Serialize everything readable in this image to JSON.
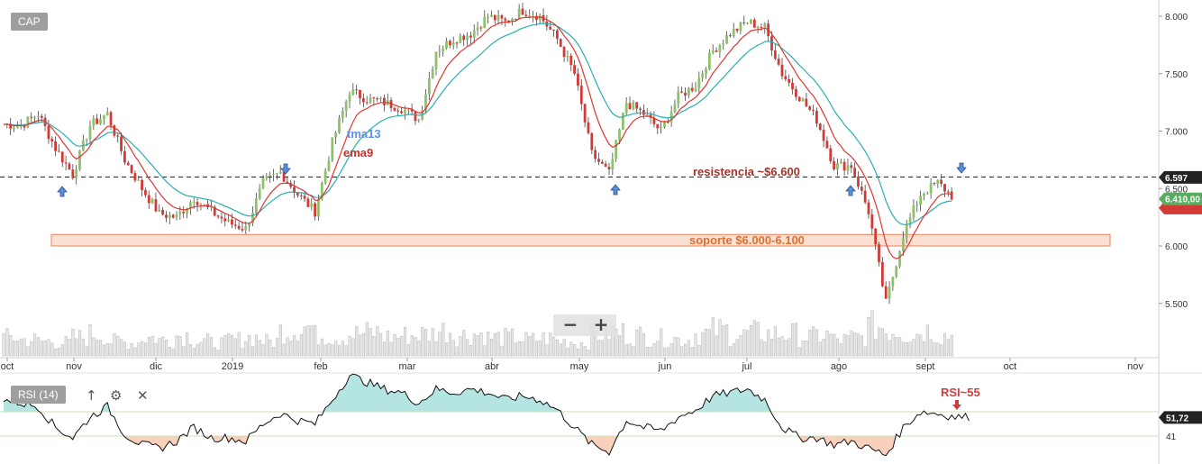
{
  "symbol": "CAP",
  "indicator_label": "RSI (14)",
  "icons": [
    "arrow-up-icon",
    "gear-icon",
    "close-icon"
  ],
  "zoom": {
    "out": "−",
    "in": "+"
  },
  "colors": {
    "up_candle": "#8dc16a",
    "down_candle": "#d43a34",
    "ema9": "#e3342f",
    "tma13": "#26b0b0",
    "support_zone": "#f7c8ae",
    "rsi_fill_high": "#a8e1de",
    "rsi_fill_low": "#f8c8b0",
    "price_tag": "#222222",
    "current_tag": "#5aac61"
  },
  "chart_data": [
    {
      "type": "candlestick",
      "x_labels": [
        "oct",
        "nov",
        "dic",
        "2019",
        "feb",
        "mar",
        "abr",
        "may",
        "jun",
        "jul",
        "ago",
        "sept",
        "oct",
        "nov"
      ],
      "y_ticks": [
        "8.000",
        "7.500",
        "7.000",
        "6.500",
        "6.000",
        "5.500"
      ],
      "ylim": [
        5400,
        8100
      ],
      "grid": false,
      "weekly_close": [
        7060,
        7050,
        7150,
        6850,
        6620,
        7050,
        7150,
        6750,
        6500,
        6280,
        6250,
        6420,
        6300,
        6200,
        6150,
        6550,
        6640,
        6450,
        6300,
        6900,
        7350,
        7280,
        7250,
        7200,
        7100,
        7700,
        7800,
        7850,
        8000,
        7950,
        8050,
        8000,
        7800,
        7500,
        6800,
        6630,
        7250,
        7150,
        7000,
        7300,
        7400,
        7700,
        7850,
        7950,
        7900,
        7500,
        7300,
        7100,
        6700,
        6700,
        6300,
        5500,
        6100,
        6450,
        6550,
        6410
      ],
      "weekly_volume": [
        25,
        22,
        20,
        18,
        25,
        30,
        20,
        18,
        25,
        22,
        28,
        20,
        18,
        22,
        25,
        20,
        35,
        40,
        28,
        25,
        30,
        32,
        26,
        28,
        30,
        35,
        28,
        30,
        25,
        25,
        22,
        24,
        20,
        18,
        30,
        32,
        28,
        26,
        24,
        22,
        30,
        35,
        28,
        32,
        30,
        30,
        26,
        28,
        22,
        25,
        40,
        35,
        30,
        35,
        28,
        20
      ],
      "series": [
        {
          "name": "tma13"
        },
        {
          "name": "ema9"
        }
      ],
      "annotations": [
        {
          "text": "tma13"
        },
        {
          "text": "ema9"
        },
        {
          "text": "resistencia ~$6.600",
          "price": 6600
        },
        {
          "text": "soporte $6.000-6.100",
          "range": [
            6000,
            6100
          ]
        }
      ],
      "price_tags": [
        {
          "label": "6.597",
          "value": 6597
        },
        {
          "label": "6.410,00",
          "value": 6410
        }
      ]
    },
    {
      "type": "line",
      "ylim": [
        25,
        80
      ],
      "levels": [
        55,
        41
      ],
      "annotations": [
        {
          "text": "RSI~55"
        }
      ],
      "price_tags": [
        {
          "label": "51,72",
          "value": 51.72
        },
        {
          "label": "41",
          "value": 41
        }
      ],
      "weekly_values": [
        62,
        60,
        58,
        46,
        40,
        52,
        58,
        42,
        36,
        34,
        38,
        46,
        40,
        40,
        38,
        48,
        54,
        50,
        48,
        62,
        76,
        72,
        68,
        66,
        60,
        68,
        66,
        68,
        66,
        62,
        64,
        62,
        56,
        46,
        36,
        32,
        50,
        46,
        44,
        52,
        56,
        64,
        66,
        68,
        62,
        46,
        40,
        40,
        36,
        38,
        34,
        30,
        46,
        55,
        54,
        52
      ]
    }
  ]
}
